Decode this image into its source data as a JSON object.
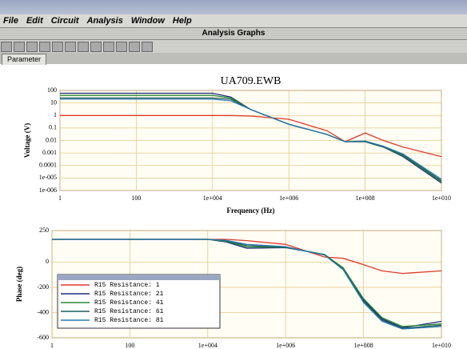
{
  "window": {
    "menu": [
      "File",
      "Edit",
      "Circuit",
      "Analysis",
      "Window",
      "Help"
    ],
    "subwindow_title": "Analysis Graphs",
    "tab": "Parameter"
  },
  "chart_data": [
    {
      "type": "line",
      "title": "UA709.EWB",
      "x_label": "Frequency (Hz)",
      "y_label": "Voltage (V)",
      "log_x": true,
      "log_y": true,
      "grid": true,
      "x": [
        1,
        100,
        10000,
        30000,
        100000,
        1000000,
        10000000,
        30000000,
        100000000,
        300000000,
        1000000000,
        10000000000
      ],
      "xlim": [
        1,
        10000000000
      ],
      "xticks": [
        1,
        100,
        {
          "value": 10000,
          "label": "1e+004"
        },
        {
          "value": 1000000,
          "label": "1e+006"
        },
        {
          "value": 100000000,
          "label": "1e+008"
        },
        {
          "value": 10000000000,
          "label": "1e+010"
        }
      ],
      "ylim": [
        1e-06,
        100
      ],
      "yticks": [
        {
          "value": 1e-06,
          "label": "1e-006"
        },
        {
          "value": 1e-05,
          "label": "1e-005"
        },
        0.0001,
        0.001,
        0.01,
        0.1,
        1,
        10,
        100
      ],
      "series": [
        {
          "color": "#e03a2a",
          "values": [
            1,
            1,
            1,
            1,
            0.9,
            0.5,
            0.06,
            0.008,
            0.04,
            0.01,
            0.003,
            0.0005
          ]
        },
        {
          "color": "#1a2a7a",
          "values": [
            60,
            60,
            60,
            30,
            3,
            0.2,
            0.03,
            0.008,
            0.008,
            0.003,
            0.0005,
            4e-06
          ]
        },
        {
          "color": "#2a8a3a",
          "values": [
            40,
            40,
            40,
            25,
            3,
            0.2,
            0.03,
            0.008,
            0.008,
            0.003,
            0.0006,
            5e-06
          ]
        },
        {
          "color": "#1f5f5a",
          "values": [
            25,
            25,
            25,
            20,
            3,
            0.2,
            0.03,
            0.008,
            0.008,
            0.003,
            0.0007,
            6e-06
          ]
        },
        {
          "color": "#2a7ab0",
          "values": [
            20,
            20,
            20,
            15,
            3,
            0.2,
            0.03,
            0.008,
            0.009,
            0.0035,
            0.0008,
            8e-06
          ]
        }
      ]
    },
    {
      "type": "line",
      "y_label": "Phase (deg)",
      "log_x": true,
      "log_y": false,
      "grid": true,
      "legend": "lower-left",
      "x": [
        1,
        100,
        10000,
        30000,
        100000,
        1000000,
        10000000,
        30000000,
        100000000,
        300000000,
        1000000000,
        10000000000
      ],
      "xlim": [
        1,
        10000000000
      ],
      "xticks": [
        1,
        100,
        {
          "value": 10000,
          "label": "1e+004"
        },
        {
          "value": 1000000,
          "label": "1e+006"
        },
        {
          "value": 100000000,
          "label": "1e+008"
        },
        {
          "value": 10000000000,
          "label": "1e+010"
        }
      ],
      "ylim": [
        -600,
        250
      ],
      "yticks": [
        -600,
        -400,
        -200,
        0,
        250
      ],
      "series": [
        {
          "name": "R15 Resistance: 1",
          "color": "#e03a2a",
          "values": [
            180,
            180,
            180,
            180,
            170,
            140,
            40,
            30,
            -20,
            -70,
            -90,
            -70
          ]
        },
        {
          "name": "R15 Resistance: 21",
          "color": "#1a2a7a",
          "values": [
            180,
            180,
            180,
            160,
            110,
            115,
            60,
            -50,
            -300,
            -450,
            -520,
            -470
          ]
        },
        {
          "name": "R15 Resistance: 41",
          "color": "#2a8a3a",
          "values": [
            180,
            180,
            180,
            165,
            120,
            118,
            60,
            -45,
            -290,
            -440,
            -510,
            -490
          ]
        },
        {
          "name": "R15 Resistance: 61",
          "color": "#1f5f5a",
          "values": [
            180,
            180,
            180,
            170,
            130,
            120,
            58,
            -55,
            -310,
            -460,
            -525,
            -500
          ]
        },
        {
          "name": "R15 Resistance: 81",
          "color": "#2a7ab0",
          "values": [
            180,
            180,
            180,
            172,
            140,
            122,
            55,
            -60,
            -320,
            -470,
            -530,
            -510
          ]
        }
      ]
    }
  ]
}
